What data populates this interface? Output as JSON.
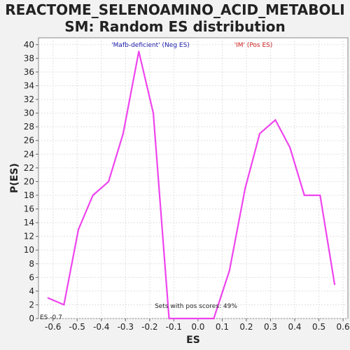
{
  "chart_data": {
    "type": "line",
    "title": "REACTOME_SELENOAMINO_ACID_METABOLI\nSM: Random ES distribution",
    "xlabel": "ES",
    "ylabel": "P(ES)",
    "xlim": [
      -0.66,
      0.62
    ],
    "ylim": [
      0,
      41
    ],
    "x_ticks": [
      -0.6,
      -0.5,
      -0.4,
      -0.3,
      -0.2,
      -0.1,
      0.0,
      0.1,
      0.2,
      0.3,
      0.4,
      0.5,
      0.6
    ],
    "x_tick_labels": [
      "-0.6",
      "-0.5",
      "-0.4",
      "-0.3",
      "-0.2",
      "-0.1",
      "0.0",
      "0.1",
      "0.2",
      "0.3",
      "0.4",
      "0.5",
      "0.6"
    ],
    "y_ticks": [
      0,
      2,
      4,
      6,
      8,
      10,
      12,
      14,
      16,
      18,
      20,
      22,
      24,
      26,
      28,
      30,
      32,
      34,
      36,
      38,
      40
    ],
    "y_tick_labels": [
      "0",
      "2",
      "4",
      "6",
      "8",
      "10",
      "12",
      "14",
      "16",
      "18",
      "20",
      "22",
      "24",
      "26",
      "28",
      "30",
      "32",
      "34",
      "36",
      "38",
      "40"
    ],
    "grid": true,
    "series": [
      {
        "color": "#ee44ee",
        "x": [
          -0.62,
          -0.555,
          -0.495,
          -0.435,
          -0.37,
          -0.31,
          -0.245,
          -0.185,
          -0.12,
          -0.06,
          0.0,
          0.065,
          0.13,
          0.195,
          0.255,
          0.32,
          0.38,
          0.44,
          0.505,
          0.565
        ],
        "y": [
          3,
          2,
          13,
          18,
          20,
          27,
          39,
          30,
          0,
          0,
          0,
          0,
          7,
          19,
          27,
          29,
          25,
          18,
          18,
          5
        ]
      }
    ],
    "annotations": {
      "neg_label": "'Mafb-deficient' (Neg ES)",
      "neg_color": "#1a1aaa",
      "pos_label": "'IM' (Pos ES)",
      "pos_color": "#cc2222",
      "pos_scores": "Sets with pos scores: 49%",
      "es_marker": "ES -0.7"
    }
  }
}
